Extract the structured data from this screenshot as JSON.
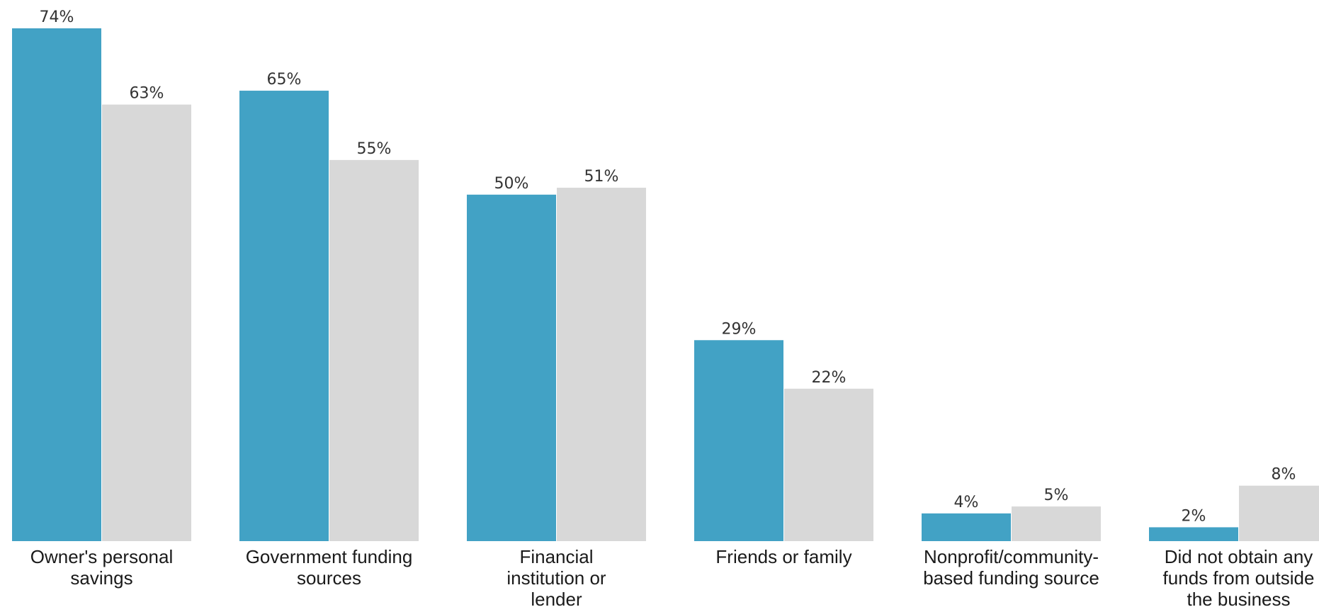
{
  "chart_data": {
    "type": "bar",
    "categories": [
      [
        "Owner's personal",
        "savings"
      ],
      [
        "Government funding",
        "sources"
      ],
      [
        "Financial",
        "institution or",
        "lender"
      ],
      [
        "Friends or family"
      ],
      [
        "Nonprofit/community-",
        "based funding source"
      ],
      [
        "Did not obtain any",
        "funds from outside",
        "the business"
      ]
    ],
    "series": [
      {
        "values": [
          74,
          65,
          50,
          29,
          4,
          2
        ],
        "labels": [
          "74%",
          "65%",
          "50%",
          "29%",
          "4%",
          "2%"
        ],
        "color": "#42a2c5"
      },
      {
        "values": [
          63,
          55,
          51,
          22,
          5,
          8
        ],
        "labels": [
          "63%",
          "55%",
          "51%",
          "22%",
          "5%",
          "8%"
        ],
        "color": "#d8d8d8"
      }
    ],
    "ylim": [
      0,
      74
    ],
    "grid": false,
    "legend": "none",
    "title": "",
    "xlabel": "",
    "ylabel": ""
  }
}
